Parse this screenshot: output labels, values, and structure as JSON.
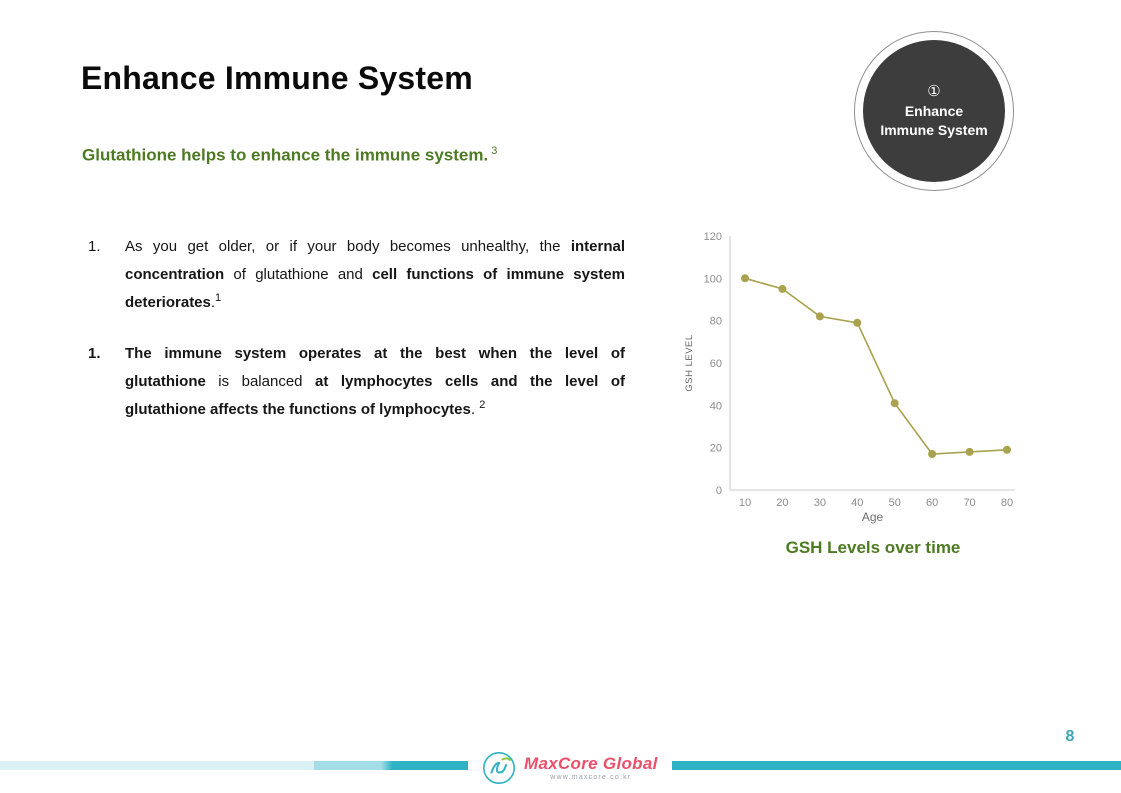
{
  "slide": {
    "title": "Enhance Immune System",
    "subtitle": {
      "text": "Glutathione helps to enhance the immune system.",
      "ref": "3"
    },
    "badge": {
      "number": "①",
      "line1": "Enhance",
      "line2": "Immune System"
    },
    "points": [
      {
        "marker": "1.",
        "marker_bold": false,
        "segments": [
          {
            "text": "As you get older, or if your body becomes unhealthy, the ",
            "bold": false
          },
          {
            "text": "internal concentration",
            "bold": true
          },
          {
            "text": " of glutathione and ",
            "bold": false
          },
          {
            "text": "cell functions of immune system deteriorates",
            "bold": true
          },
          {
            "text": ".",
            "bold": false
          },
          {
            "text": "1",
            "bold": false,
            "sup": true
          }
        ]
      },
      {
        "marker": "1.",
        "marker_bold": true,
        "segments": [
          {
            "text": "The immune system operates at the best when the level of glutathione",
            "bold": true
          },
          {
            "text": " is balanced ",
            "bold": false
          },
          {
            "text": "at lymphocytes cells and the level of glutathione affects the functions of lymphocytes",
            "bold": true
          },
          {
            "text": ". ",
            "bold": false
          },
          {
            "text": "2",
            "bold": false,
            "sup": true
          }
        ]
      }
    ],
    "chart_caption": "GSH Levels over time",
    "page_number": "8",
    "footer": {
      "brand": "MaxCore Global",
      "url": "www.maxcore.co.kr"
    }
  },
  "colors": {
    "accent_green": "#4d7a23",
    "badge_fill": "#3d3d3d",
    "teal": "#2fb3c4",
    "brand_red": "#e9506a",
    "chart_line": "#a9a24e",
    "axis_gray": "#c8c8c8",
    "tick_gray": "#8c8c8c"
  },
  "chart_data": {
    "type": "line",
    "title": "GSH Levels over time",
    "x": [
      10,
      20,
      30,
      40,
      50,
      60,
      70,
      80
    ],
    "series": [
      {
        "name": "GSH Level",
        "values": [
          100,
          95,
          82,
          79,
          41,
          17,
          18,
          19
        ]
      }
    ],
    "xlabel": "Age",
    "ylabel": "GSH LEVEL",
    "ylim": [
      0,
      120
    ],
    "yticks": [
      0,
      20,
      40,
      60,
      80,
      100,
      120
    ],
    "grid": false,
    "legend": "none"
  }
}
